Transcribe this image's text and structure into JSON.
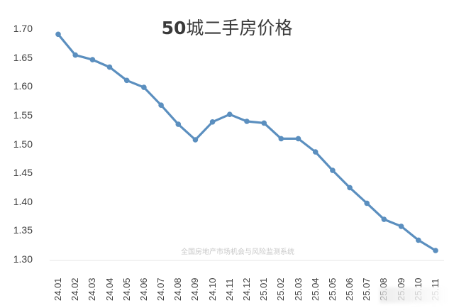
{
  "chart_data": {
    "type": "line",
    "title": "50城二手房价格",
    "xlabel": "",
    "ylabel": "",
    "ylim": [
      1.3,
      1.7
    ],
    "yticks": [
      "1.70",
      "1.65",
      "1.60",
      "1.55",
      "1.50",
      "1.45",
      "1.40",
      "1.35",
      "1.30"
    ],
    "grid": false,
    "legend": null,
    "categories": [
      "24.01",
      "24.02",
      "24.03",
      "24.04",
      "24.05",
      "24.06",
      "24.07",
      "24.08",
      "24.09",
      "24.10",
      "24.11",
      "24.12",
      "25.01",
      "25.02",
      "25.03",
      "25.04",
      "25.05",
      "25.06",
      "25.07",
      "25.08",
      "25.09",
      "25.10",
      "25.11"
    ],
    "series": [
      {
        "name": "50城二手房价格",
        "color": "#5b8fbf",
        "values": [
          1.691,
          1.655,
          1.647,
          1.634,
          1.611,
          1.599,
          1.568,
          1.535,
          1.508,
          1.539,
          1.552,
          1.54,
          1.537,
          1.51,
          1.51,
          1.487,
          1.455,
          1.425,
          1.398,
          1.37,
          1.358,
          1.334,
          1.316
        ]
      }
    ],
    "annotations": [
      "全国房地产市场机会与风险监测系统"
    ]
  },
  "title": {
    "num": "50",
    "cn": "城二手房价格"
  },
  "watermark": "全国房地产市场机会与风险监测系统"
}
